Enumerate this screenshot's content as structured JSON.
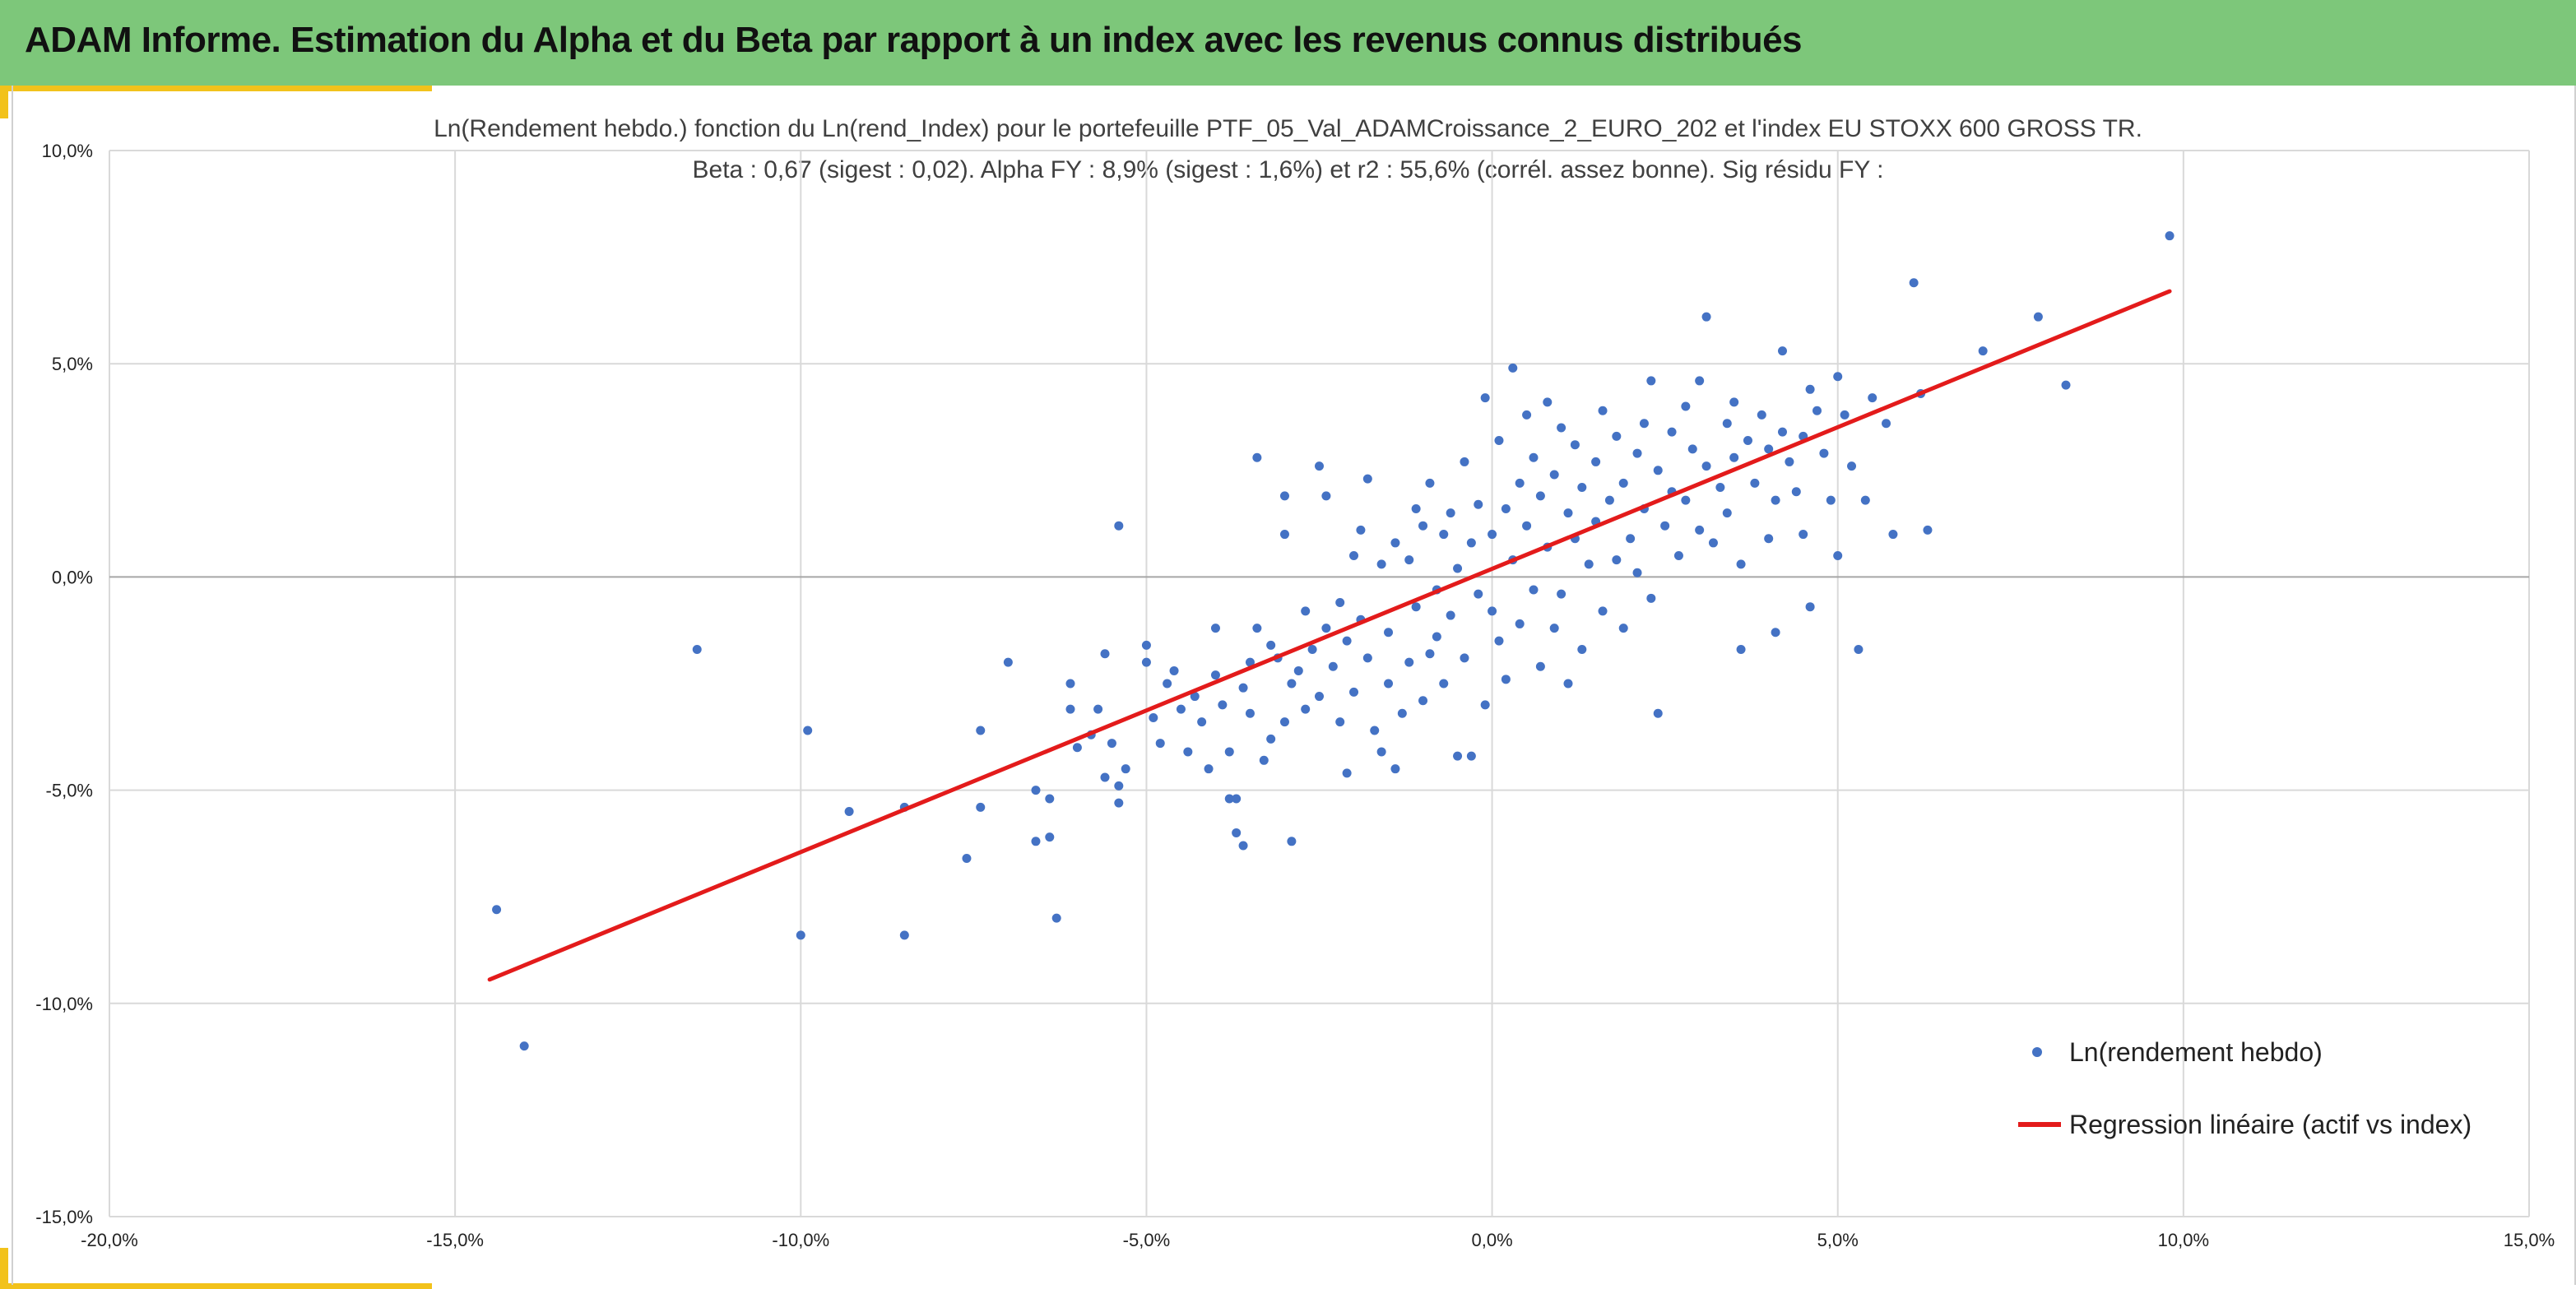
{
  "header": {
    "title": "ADAM Informe. Estimation du Alpha et du Beta par rapport à un index avec les revenus connus distribués"
  },
  "colors": {
    "banner": "#7dc77a",
    "accent": "#f2c21b",
    "points": "#4472c4",
    "regression": "#e31b1b",
    "grid": "#d9d9d9",
    "zero_axis": "#a6a6a6"
  },
  "chart_data": {
    "type": "scatter",
    "title": "Ln(Rendement hebdo.) fonction du Ln(rend_Index) pour le portefeuille PTF_05_Val_ADAMCroissance_2_EURO_202 et l'index EU STOXX 600 GROSS TR.",
    "subtitle": "Beta : 0,67 (sigest : 0,02). Alpha FY : 8,9% (sigest : 1,6%) et r2 : 55,6% (corrél. assez bonne). Sig résidu FY :",
    "xlabel": "",
    "ylabel": "",
    "xlim": [
      -0.2,
      0.15
    ],
    "ylim": [
      -0.15,
      0.1
    ],
    "x_ticks": [
      {
        "value": -0.2,
        "label": "-20,0%"
      },
      {
        "value": -0.15,
        "label": "-15,0%"
      },
      {
        "value": -0.1,
        "label": "-10,0%"
      },
      {
        "value": -0.05,
        "label": "-5,0%"
      },
      {
        "value": 0.0,
        "label": "0,0%"
      },
      {
        "value": 0.05,
        "label": "5,0%"
      },
      {
        "value": 0.1,
        "label": "10,0%"
      },
      {
        "value": 0.15,
        "label": "15,0%"
      }
    ],
    "y_ticks": [
      {
        "value": 0.1,
        "label": "10,0%"
      },
      {
        "value": 0.05,
        "label": "5,0%"
      },
      {
        "value": 0.0,
        "label": "0,0%"
      },
      {
        "value": -0.05,
        "label": "-5,0%"
      },
      {
        "value": -0.1,
        "label": "-10,0%"
      },
      {
        "value": -0.15,
        "label": "-15,0%"
      }
    ],
    "grid": true,
    "legend": "right",
    "series": [
      {
        "name": "Ln(rendement hebdo)",
        "kind": "scatter",
        "points": [
          [
            -0.144,
            -0.078
          ],
          [
            -0.14,
            -0.11
          ],
          [
            -0.115,
            -0.017
          ],
          [
            -0.1,
            -0.084
          ],
          [
            -0.099,
            -0.036
          ],
          [
            -0.093,
            -0.055
          ],
          [
            -0.085,
            -0.084
          ],
          [
            -0.085,
            -0.054
          ],
          [
            -0.076,
            -0.066
          ],
          [
            -0.074,
            -0.036
          ],
          [
            -0.074,
            -0.054
          ],
          [
            -0.07,
            -0.02
          ],
          [
            -0.066,
            -0.05
          ],
          [
            -0.066,
            -0.062
          ],
          [
            -0.064,
            -0.052
          ],
          [
            -0.064,
            -0.061
          ],
          [
            -0.063,
            -0.08
          ],
          [
            -0.061,
            -0.025
          ],
          [
            -0.061,
            -0.031
          ],
          [
            -0.06,
            -0.04
          ],
          [
            -0.058,
            -0.037
          ],
          [
            -0.057,
            -0.031
          ],
          [
            -0.056,
            -0.018
          ],
          [
            -0.056,
            -0.047
          ],
          [
            -0.055,
            -0.039
          ],
          [
            -0.054,
            -0.049
          ],
          [
            -0.054,
            -0.053
          ],
          [
            -0.054,
            0.012
          ],
          [
            -0.053,
            -0.045
          ],
          [
            -0.05,
            -0.02
          ],
          [
            -0.05,
            -0.016
          ],
          [
            -0.049,
            -0.033
          ],
          [
            -0.048,
            -0.039
          ],
          [
            -0.047,
            -0.025
          ],
          [
            -0.046,
            -0.022
          ],
          [
            -0.045,
            -0.031
          ],
          [
            -0.044,
            -0.041
          ],
          [
            -0.043,
            -0.028
          ],
          [
            -0.042,
            -0.034
          ],
          [
            -0.041,
            -0.045
          ],
          [
            -0.04,
            -0.023
          ],
          [
            -0.04,
            -0.012
          ],
          [
            -0.039,
            -0.03
          ],
          [
            -0.038,
            -0.041
          ],
          [
            -0.038,
            -0.052
          ],
          [
            -0.037,
            -0.06
          ],
          [
            -0.037,
            -0.052
          ],
          [
            -0.036,
            -0.063
          ],
          [
            -0.036,
            -0.026
          ],
          [
            -0.035,
            -0.02
          ],
          [
            -0.035,
            -0.032
          ],
          [
            -0.034,
            -0.012
          ],
          [
            -0.034,
            0.028
          ],
          [
            -0.033,
            -0.043
          ],
          [
            -0.032,
            -0.038
          ],
          [
            -0.032,
            -0.016
          ],
          [
            -0.031,
            -0.019
          ],
          [
            -0.03,
            0.019
          ],
          [
            -0.03,
            0.01
          ],
          [
            -0.03,
            -0.034
          ],
          [
            -0.029,
            -0.062
          ],
          [
            -0.029,
            -0.025
          ],
          [
            -0.028,
            -0.022
          ],
          [
            -0.027,
            -0.008
          ],
          [
            -0.027,
            -0.031
          ],
          [
            -0.026,
            -0.017
          ],
          [
            -0.025,
            -0.028
          ],
          [
            -0.025,
            0.026
          ],
          [
            -0.024,
            0.019
          ],
          [
            -0.024,
            -0.012
          ],
          [
            -0.023,
            -0.021
          ],
          [
            -0.022,
            -0.034
          ],
          [
            -0.022,
            -0.006
          ],
          [
            -0.021,
            -0.046
          ],
          [
            -0.021,
            -0.015
          ],
          [
            -0.02,
            0.005
          ],
          [
            -0.02,
            -0.027
          ],
          [
            -0.019,
            -0.01
          ],
          [
            -0.019,
            0.011
          ],
          [
            -0.018,
            0.023
          ],
          [
            -0.018,
            -0.019
          ],
          [
            -0.017,
            -0.036
          ],
          [
            -0.016,
            -0.041
          ],
          [
            -0.016,
            0.003
          ],
          [
            -0.015,
            -0.013
          ],
          [
            -0.015,
            -0.025
          ],
          [
            -0.014,
            -0.045
          ],
          [
            -0.014,
            0.008
          ],
          [
            -0.013,
            -0.032
          ],
          [
            -0.012,
            -0.02
          ],
          [
            -0.012,
            0.004
          ],
          [
            -0.011,
            0.016
          ],
          [
            -0.011,
            -0.007
          ],
          [
            -0.01,
            -0.029
          ],
          [
            -0.01,
            0.012
          ],
          [
            -0.009,
            -0.018
          ],
          [
            -0.009,
            0.022
          ],
          [
            -0.008,
            -0.003
          ],
          [
            -0.008,
            -0.014
          ],
          [
            -0.007,
            0.01
          ],
          [
            -0.007,
            -0.025
          ],
          [
            -0.006,
            0.015
          ],
          [
            -0.006,
            -0.009
          ],
          [
            -0.005,
            0.002
          ],
          [
            -0.005,
            -0.042
          ],
          [
            -0.004,
            0.027
          ],
          [
            -0.004,
            -0.019
          ],
          [
            -0.003,
            0.008
          ],
          [
            -0.003,
            -0.042
          ],
          [
            -0.002,
            0.017
          ],
          [
            -0.002,
            -0.004
          ],
          [
            -0.001,
            0.042
          ],
          [
            -0.001,
            -0.03
          ],
          [
            0.0,
            0.01
          ],
          [
            0.0,
            -0.008
          ],
          [
            0.001,
            0.032
          ],
          [
            0.001,
            -0.015
          ],
          [
            0.002,
            0.016
          ],
          [
            0.002,
            -0.024
          ],
          [
            0.003,
            0.049
          ],
          [
            0.003,
            0.004
          ],
          [
            0.004,
            0.022
          ],
          [
            0.004,
            -0.011
          ],
          [
            0.005,
            0.038
          ],
          [
            0.005,
            0.012
          ],
          [
            0.006,
            -0.003
          ],
          [
            0.006,
            0.028
          ],
          [
            0.007,
            -0.021
          ],
          [
            0.007,
            0.019
          ],
          [
            0.008,
            0.041
          ],
          [
            0.008,
            0.007
          ],
          [
            0.009,
            -0.012
          ],
          [
            0.009,
            0.024
          ],
          [
            0.01,
            0.035
          ],
          [
            0.01,
            -0.004
          ],
          [
            0.011,
            0.015
          ],
          [
            0.011,
            -0.025
          ],
          [
            0.012,
            0.031
          ],
          [
            0.012,
            0.009
          ],
          [
            0.013,
            0.021
          ],
          [
            0.013,
            -0.017
          ],
          [
            0.014,
            0.003
          ],
          [
            0.015,
            0.027
          ],
          [
            0.015,
            0.013
          ],
          [
            0.016,
            0.039
          ],
          [
            0.016,
            -0.008
          ],
          [
            0.017,
            0.018
          ],
          [
            0.018,
            0.004
          ],
          [
            0.018,
            0.033
          ],
          [
            0.019,
            -0.012
          ],
          [
            0.019,
            0.022
          ],
          [
            0.02,
            0.009
          ],
          [
            0.021,
            0.029
          ],
          [
            0.021,
            0.001
          ],
          [
            0.022,
            0.036
          ],
          [
            0.022,
            0.016
          ],
          [
            0.023,
            0.046
          ],
          [
            0.023,
            -0.005
          ],
          [
            0.024,
            0.025
          ],
          [
            0.024,
            -0.032
          ],
          [
            0.025,
            0.012
          ],
          [
            0.026,
            0.034
          ],
          [
            0.026,
            0.02
          ],
          [
            0.027,
            0.005
          ],
          [
            0.028,
            0.04
          ],
          [
            0.028,
            0.018
          ],
          [
            0.029,
            0.03
          ],
          [
            0.03,
            0.011
          ],
          [
            0.03,
            0.046
          ],
          [
            0.031,
            0.026
          ],
          [
            0.031,
            0.061
          ],
          [
            0.032,
            0.008
          ],
          [
            0.033,
            0.021
          ],
          [
            0.034,
            0.036
          ],
          [
            0.034,
            0.015
          ],
          [
            0.035,
            0.041
          ],
          [
            0.035,
            0.028
          ],
          [
            0.036,
            0.003
          ],
          [
            0.036,
            -0.017
          ],
          [
            0.037,
            0.032
          ],
          [
            0.038,
            0.022
          ],
          [
            0.039,
            0.038
          ],
          [
            0.04,
            0.009
          ],
          [
            0.04,
            0.03
          ],
          [
            0.041,
            -0.013
          ],
          [
            0.041,
            0.018
          ],
          [
            0.042,
            0.053
          ],
          [
            0.042,
            0.034
          ],
          [
            0.043,
            0.027
          ],
          [
            0.044,
            0.02
          ],
          [
            0.045,
            0.033
          ],
          [
            0.045,
            0.01
          ],
          [
            0.046,
            -0.007
          ],
          [
            0.046,
            0.044
          ],
          [
            0.047,
            0.039
          ],
          [
            0.048,
            0.029
          ],
          [
            0.049,
            0.018
          ],
          [
            0.05,
            0.047
          ],
          [
            0.05,
            0.005
          ],
          [
            0.051,
            0.038
          ],
          [
            0.052,
            0.026
          ],
          [
            0.053,
            -0.017
          ],
          [
            0.054,
            0.018
          ],
          [
            0.055,
            0.042
          ],
          [
            0.057,
            0.036
          ],
          [
            0.058,
            0.01
          ],
          [
            0.061,
            0.069
          ],
          [
            0.062,
            0.043
          ],
          [
            0.063,
            0.011
          ],
          [
            0.071,
            0.053
          ],
          [
            0.079,
            0.061
          ],
          [
            0.083,
            0.045
          ],
          [
            0.098,
            0.08
          ]
        ]
      },
      {
        "name": "Regression linéaire (actif vs index)",
        "kind": "line",
        "points": [
          [
            -0.145,
            -0.0944
          ],
          [
            0.098,
            0.067
          ]
        ]
      }
    ]
  }
}
